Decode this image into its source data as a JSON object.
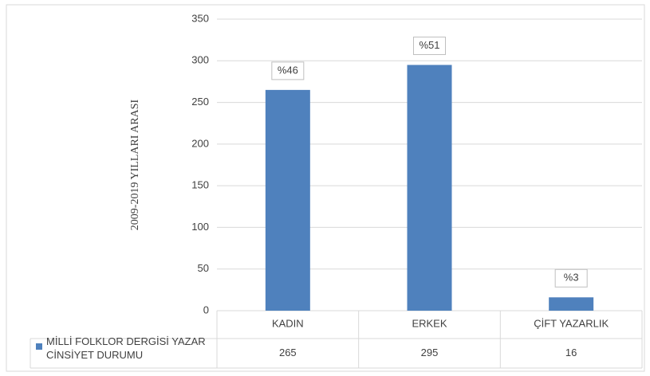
{
  "chart_data": {
    "type": "bar",
    "y_axis_label": "2009-2019 YILLARI ARASI",
    "categories": [
      "KADIN",
      "ERKEK",
      "ÇİFT YAZARLIK"
    ],
    "series": [
      {
        "name": "MİLLİ FOLKLOR DERGİSİ YAZAR CİNSİYET DURUMU",
        "color": "#4f81bd",
        "values": [
          265,
          295,
          16
        ]
      }
    ],
    "annotations": [
      "%46",
      "%51",
      "%3"
    ],
    "ylim": [
      0,
      350
    ],
    "yticks": [
      0,
      50,
      100,
      150,
      200,
      250,
      300,
      350
    ],
    "grid": true
  }
}
